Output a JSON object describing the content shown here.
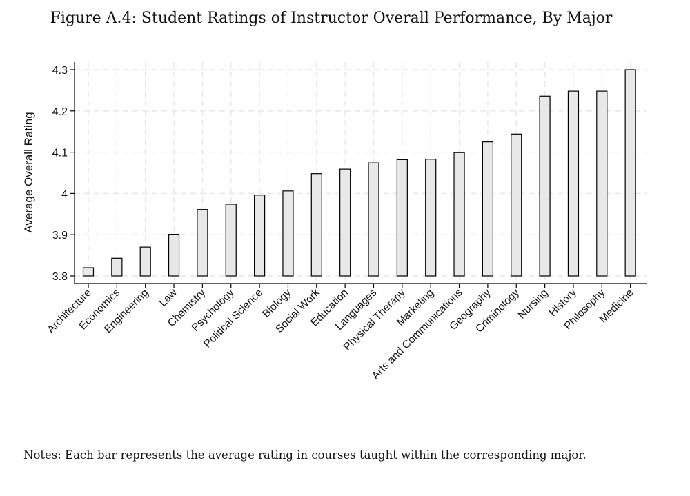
{
  "chart_data": {
    "type": "bar",
    "title": "Figure A.4: Student Ratings of Instructor Overall Performance, By Major",
    "xlabel": "",
    "ylabel": "Average Overall Rating",
    "ylim": [
      3.8,
      4.3
    ],
    "yticks": [
      3.8,
      3.9,
      4,
      4.1,
      4.2,
      4.3
    ],
    "ytick_labels": [
      "3.8",
      "3.9",
      "4",
      "4.1",
      "4.2",
      "4.3"
    ],
    "grid": true,
    "categories": [
      "Architecture",
      "Economics",
      "Engineering",
      "Law",
      "Chemistry",
      "Psychology",
      "Political Science",
      "Biology",
      "Social Work",
      "Education",
      "Languages",
      "Physical Therapy",
      "Marketing",
      "Arts and Communications",
      "Geography",
      "Criminology",
      "Nursing",
      "History",
      "Philosophy",
      "Medicine"
    ],
    "values": [
      3.82,
      3.843,
      3.87,
      3.901,
      3.961,
      3.974,
      3.996,
      4.006,
      4.048,
      4.059,
      4.074,
      4.082,
      4.083,
      4.099,
      4.125,
      4.144,
      4.236,
      4.248,
      4.248,
      4.3
    ],
    "bar_fill": "#e8e8e8",
    "bar_stroke": "#000000",
    "grid_color": "#e6e6e6"
  },
  "notes": "Notes: Each bar represents the average rating in courses taught within the corresponding major."
}
